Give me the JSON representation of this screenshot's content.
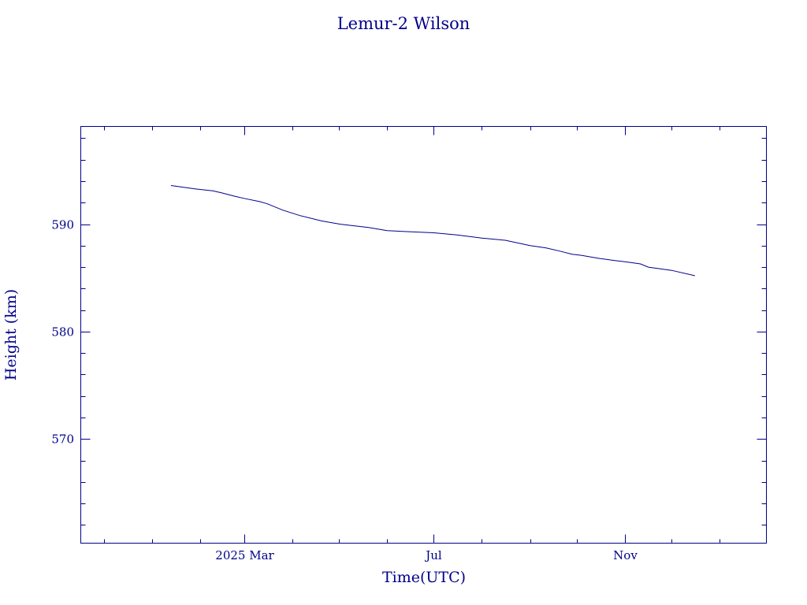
{
  "chart_data": {
    "type": "line",
    "title": "Lemur-2 Wilson",
    "xlabel": "Time(UTC)",
    "ylabel": "Height (km)",
    "x_ticks": [
      {
        "date": "2025-03-01",
        "label": "2025 Mar"
      },
      {
        "date": "2025-07-01",
        "label": "Jul"
      },
      {
        "date": "2025-11-01",
        "label": "Nov"
      }
    ],
    "xlim": [
      "2024-11-16",
      "2026-01-31"
    ],
    "ylim": [
      560.3,
      599.1
    ],
    "y_ticks": [
      570,
      580,
      590
    ],
    "grid": false,
    "series": [
      {
        "x": [
          "2025-01-13",
          "2025-01-28",
          "2025-02-09",
          "2025-02-15",
          "2025-02-23",
          "2025-03-01",
          "2025-03-11",
          "2025-03-16",
          "2025-03-26",
          "2025-04-06",
          "2025-04-20",
          "2025-05-02",
          "2025-05-20",
          "2025-06-01",
          "2025-06-15",
          "2025-07-01",
          "2025-07-16",
          "2025-08-01",
          "2025-08-16",
          "2025-09-01",
          "2025-09-11",
          "2025-09-20",
          "2025-09-28",
          "2025-10-04",
          "2025-10-16",
          "2025-10-26",
          "2025-11-01",
          "2025-11-11",
          "2025-11-16",
          "2025-12-01",
          "2025-12-16"
        ],
        "y": [
          593.6,
          593.3,
          593.1,
          592.9,
          592.6,
          592.4,
          592.1,
          591.9,
          591.3,
          590.8,
          590.3,
          590.0,
          589.7,
          589.4,
          589.3,
          589.2,
          589.0,
          588.7,
          588.5,
          588.0,
          587.8,
          587.5,
          587.2,
          587.1,
          586.8,
          586.6,
          586.5,
          586.3,
          586.0,
          585.7,
          585.2
        ]
      }
    ]
  }
}
